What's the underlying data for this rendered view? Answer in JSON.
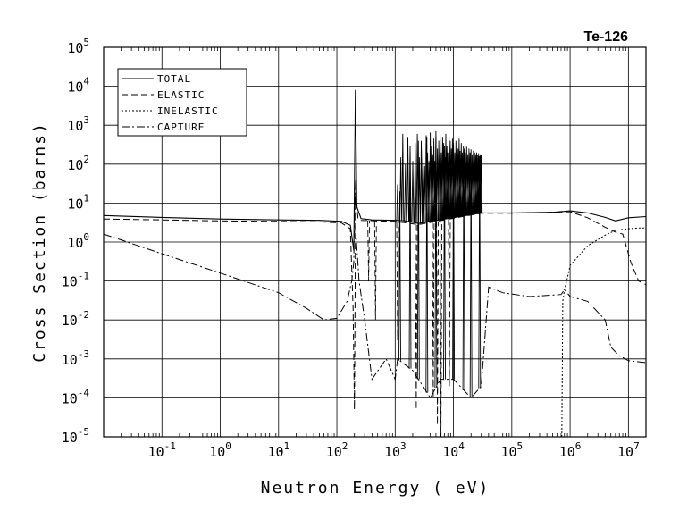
{
  "chart_data": {
    "type": "line",
    "title": "Te-126",
    "xlabel": "Neutron Energy ( eV)",
    "ylabel": "Cross Section (barns)",
    "xscale": "log",
    "yscale": "log",
    "xlim": [
      0.01,
      20000000
    ],
    "ylim": [
      1e-05,
      100000
    ],
    "grid": true,
    "legend_position": "top-left",
    "x_ticks": [
      {
        "base": "10",
        "exp": "-1",
        "value": 0.1
      },
      {
        "base": "10",
        "exp": "0",
        "value": 1
      },
      {
        "base": "10",
        "exp": "1",
        "value": 10
      },
      {
        "base": "10",
        "exp": "2",
        "value": 100
      },
      {
        "base": "10",
        "exp": "3",
        "value": 1000
      },
      {
        "base": "10",
        "exp": "4",
        "value": 10000
      },
      {
        "base": "10",
        "exp": "5",
        "value": 100000
      },
      {
        "base": "10",
        "exp": "6",
        "value": 1000000
      },
      {
        "base": "10",
        "exp": "7",
        "value": 10000000
      }
    ],
    "y_ticks": [
      {
        "base": "10",
        "exp": "-5",
        "value": 1e-05
      },
      {
        "base": "10",
        "exp": "-4",
        "value": 0.0001
      },
      {
        "base": "10",
        "exp": "-3",
        "value": 0.001
      },
      {
        "base": "10",
        "exp": "-2",
        "value": 0.01
      },
      {
        "base": "10",
        "exp": "-1",
        "value": 0.1
      },
      {
        "base": "10",
        "exp": "0",
        "value": 1
      },
      {
        "base": "10",
        "exp": "1",
        "value": 10
      },
      {
        "base": "10",
        "exp": "2",
        "value": 100
      },
      {
        "base": "10",
        "exp": "3",
        "value": 1000
      },
      {
        "base": "10",
        "exp": "4",
        "value": 10000
      },
      {
        "base": "10",
        "exp": "5",
        "value": 100000
      }
    ],
    "series": [
      {
        "name": "TOTAL",
        "style": "solid",
        "points": [
          [
            0.01,
            4.8
          ],
          [
            0.1,
            4.3
          ],
          [
            1,
            3.9
          ],
          [
            10,
            3.7
          ],
          [
            50,
            3.6
          ],
          [
            120,
            3.4
          ],
          [
            170,
            2.7
          ],
          [
            195,
            0.6
          ],
          [
            208,
            8000
          ],
          [
            220,
            8
          ],
          [
            260,
            4
          ],
          [
            400,
            3.7
          ],
          [
            1000,
            3.6
          ],
          [
            1500,
            3.5
          ],
          [
            2500,
            3.0
          ],
          [
            30000,
            5.6
          ],
          [
            100000,
            5.6
          ],
          [
            500000,
            5.8
          ],
          [
            1000000,
            6.3
          ],
          [
            2000000,
            5.6
          ],
          [
            4000000,
            4.3
          ],
          [
            6000000,
            3.5
          ],
          [
            10000000,
            4.2
          ],
          [
            20000000,
            4.5
          ]
        ],
        "resonances": [
          [
            1100,
            30
          ],
          [
            1250,
            150
          ],
          [
            1350,
            600
          ],
          [
            1500,
            100
          ],
          [
            1650,
            500
          ],
          [
            1800,
            300
          ],
          [
            2000,
            120
          ],
          [
            2200,
            350
          ],
          [
            2400,
            600
          ],
          [
            2600,
            150
          ],
          [
            2800,
            400
          ],
          [
            3000,
            250
          ],
          [
            3200,
            90
          ],
          [
            3400,
            550
          ],
          [
            3600,
            200
          ],
          [
            3800,
            120
          ],
          [
            4000,
            650
          ],
          [
            4200,
            300
          ],
          [
            4400,
            180
          ],
          [
            4600,
            450
          ],
          [
            4800,
            120
          ],
          [
            5000,
            700
          ],
          [
            5300,
            250
          ],
          [
            5600,
            400
          ],
          [
            5900,
            600
          ],
          [
            6200,
            200
          ],
          [
            6500,
            500
          ],
          [
            6800,
            350
          ],
          [
            7100,
            150
          ],
          [
            7400,
            600
          ],
          [
            7700,
            300
          ],
          [
            8000,
            200
          ],
          [
            8400,
            500
          ],
          [
            8800,
            400
          ],
          [
            9200,
            250
          ],
          [
            9600,
            450
          ],
          [
            10000,
            350
          ],
          [
            10500,
            200
          ],
          [
            11000,
            400
          ],
          [
            11500,
            300
          ],
          [
            12000,
            250
          ],
          [
            12500,
            450
          ],
          [
            13000,
            220
          ],
          [
            13600,
            350
          ],
          [
            14200,
            200
          ],
          [
            14800,
            300
          ],
          [
            15400,
            250
          ],
          [
            16000,
            200
          ],
          [
            16800,
            280
          ],
          [
            17600,
            180
          ],
          [
            18400,
            250
          ],
          [
            19200,
            200
          ],
          [
            20000,
            240
          ],
          [
            21000,
            180
          ],
          [
            22000,
            220
          ],
          [
            23000,
            200
          ],
          [
            24000,
            180
          ],
          [
            25000,
            200
          ],
          [
            26000,
            170
          ],
          [
            27000,
            190
          ],
          [
            28000,
            160
          ],
          [
            29000,
            180
          ],
          [
            30000,
            170
          ]
        ]
      },
      {
        "name": "ELASTIC",
        "style": "dashed",
        "points": [
          [
            0.01,
            3.9
          ],
          [
            0.1,
            3.7
          ],
          [
            1,
            3.5
          ],
          [
            10,
            3.4
          ],
          [
            50,
            3.3
          ],
          [
            120,
            3.1
          ],
          [
            170,
            2.2
          ],
          [
            190,
            0.02
          ],
          [
            200,
            5e-05
          ],
          [
            210,
            20
          ],
          [
            230,
            4
          ],
          [
            260,
            3.6
          ],
          [
            1000,
            3.4
          ],
          [
            2500,
            2.8
          ],
          [
            30000,
            5.5
          ],
          [
            100000,
            5.5
          ],
          [
            1000000,
            6.0
          ],
          [
            2000000,
            4.2
          ],
          [
            4000000,
            2.4
          ],
          [
            6000000,
            1.8
          ],
          [
            8000000,
            1.6
          ],
          [
            11000000,
            0.3
          ],
          [
            15000000,
            0.1
          ],
          [
            20000000,
            0.08
          ]
        ],
        "dips": [
          [
            350,
            0.1
          ],
          [
            460,
            0.01
          ],
          [
            1100,
            0.003
          ],
          [
            2300,
            5e-05
          ],
          [
            4500,
            0.0001
          ],
          [
            5300,
            2e-05
          ],
          [
            6100,
            1e-05
          ],
          [
            8500,
            0.0002
          ]
        ]
      },
      {
        "name": "INELASTIC",
        "style": "dotted",
        "points": [
          [
            720000,
            1e-05
          ],
          [
            750000,
            0.03
          ],
          [
            800000,
            0.06
          ],
          [
            900000,
            0.12
          ],
          [
            1000000,
            0.25
          ],
          [
            2000000,
            0.8
          ],
          [
            4000000,
            1.5
          ],
          [
            6000000,
            2.0
          ],
          [
            10000000,
            2.2
          ],
          [
            15000000,
            2.3
          ],
          [
            20000000,
            2.3
          ]
        ]
      },
      {
        "name": "CAPTURE",
        "style": "dashdot",
        "points": [
          [
            0.01,
            1.6
          ],
          [
            0.1,
            0.5
          ],
          [
            1,
            0.16
          ],
          [
            10,
            0.05
          ],
          [
            30,
            0.02
          ],
          [
            60,
            0.01
          ],
          [
            100,
            0.011
          ],
          [
            150,
            0.03
          ],
          [
            180,
            0.1
          ],
          [
            195,
            0.3
          ],
          [
            203,
            40
          ],
          [
            210,
            2
          ],
          [
            240,
            0.1
          ],
          [
            300,
            0.01
          ],
          [
            400,
            0.0003
          ],
          [
            700,
            0.001
          ],
          [
            1000,
            0.0003
          ],
          [
            1100,
            0.001
          ],
          [
            2000,
            0.0005
          ],
          [
            3000,
            0.0002
          ],
          [
            4000,
            0.0001
          ],
          [
            6000,
            0.0003
          ],
          [
            10000,
            0.0003
          ],
          [
            20000,
            0.0001
          ],
          [
            30000,
            0.0002
          ],
          [
            40000,
            0.07
          ],
          [
            70000,
            0.05
          ],
          [
            200000,
            0.04
          ],
          [
            700000,
            0.045
          ],
          [
            800000,
            0.06
          ],
          [
            1000000,
            0.04
          ],
          [
            2000000,
            0.03
          ],
          [
            4000000,
            0.01
          ],
          [
            5000000,
            0.002
          ],
          [
            7000000,
            0.0012
          ],
          [
            10000000,
            0.0009
          ],
          [
            20000000,
            0.0008
          ]
        ],
        "resonances": [
          [
            1200,
            20
          ],
          [
            1800,
            100
          ],
          [
            2500,
            400
          ],
          [
            3500,
            500
          ],
          [
            5000,
            500
          ],
          [
            7000,
            300
          ],
          [
            10000,
            250
          ],
          [
            15000,
            200
          ],
          [
            20000,
            150
          ],
          [
            28000,
            150
          ]
        ]
      }
    ]
  }
}
